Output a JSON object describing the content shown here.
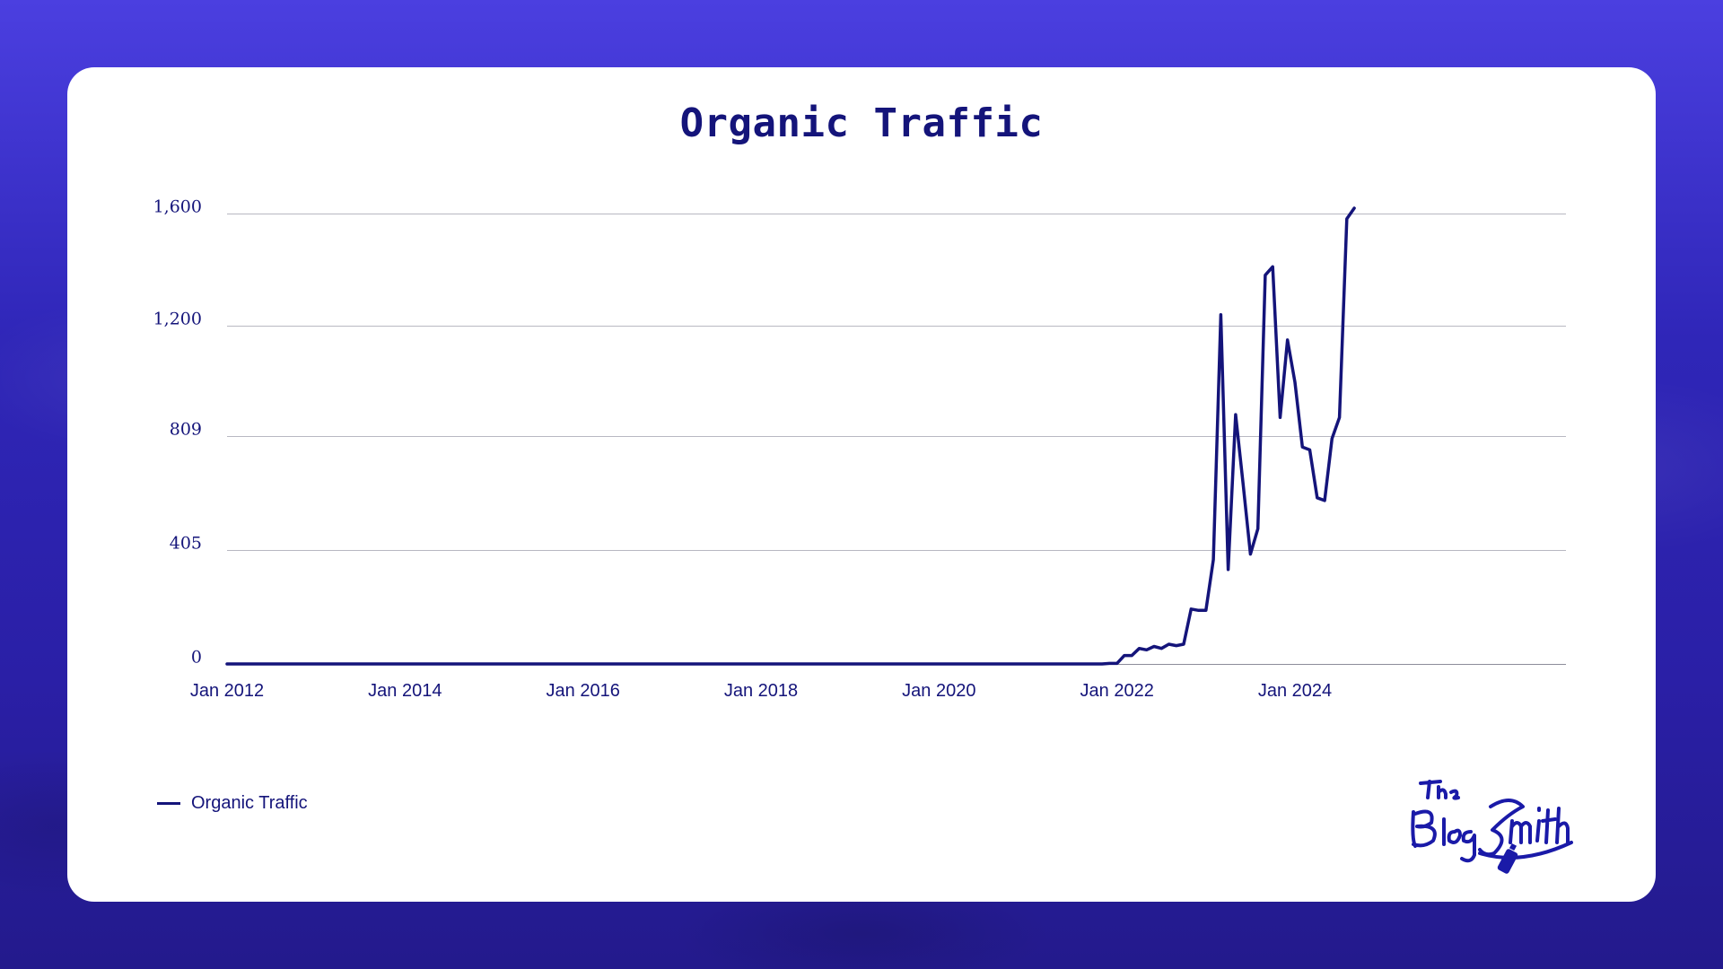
{
  "chart_data": {
    "type": "line",
    "title": "Organic Traffic",
    "xlabel": "",
    "ylabel": "",
    "x_ticks": [
      "Jan 2012",
      "Jan 2014",
      "Jan 2016",
      "Jan 2018",
      "Jan 2020",
      "Jan 2022",
      "Jan 2024"
    ],
    "y_ticks": [
      "0",
      "405",
      "809",
      "1,200",
      "1,600"
    ],
    "ylim": [
      0,
      1618
    ],
    "xlim": [
      "2012-01",
      "2024-07"
    ],
    "grid": true,
    "legend_position": "bottom-left",
    "series": [
      {
        "name": "Organic Traffic",
        "color": "#14147a",
        "points": [
          [
            "2012-01",
            0
          ],
          [
            "2021-11",
            0
          ],
          [
            "2021-12",
            2
          ],
          [
            "2022-01",
            2
          ],
          [
            "2022-02",
            30
          ],
          [
            "2022-03",
            30
          ],
          [
            "2022-04",
            55
          ],
          [
            "2022-05",
            50
          ],
          [
            "2022-06",
            62
          ],
          [
            "2022-07",
            55
          ],
          [
            "2022-08",
            70
          ],
          [
            "2022-09",
            65
          ],
          [
            "2022-10",
            70
          ],
          [
            "2022-11",
            195
          ],
          [
            "2022-12",
            190
          ],
          [
            "2023-01",
            190
          ],
          [
            "2023-02",
            370
          ],
          [
            "2023-03",
            1240
          ],
          [
            "2023-04",
            335
          ],
          [
            "2023-05",
            885
          ],
          [
            "2023-06",
            640
          ],
          [
            "2023-07",
            390
          ],
          [
            "2023-08",
            480
          ],
          [
            "2023-09",
            1380
          ],
          [
            "2023-10",
            1410
          ],
          [
            "2023-11",
            875
          ],
          [
            "2023-12",
            1150
          ],
          [
            "2024-01",
            1000
          ],
          [
            "2024-02",
            770
          ],
          [
            "2024-03",
            760
          ],
          [
            "2024-04",
            590
          ],
          [
            "2024-05",
            580
          ],
          [
            "2024-06",
            800
          ],
          [
            "2024-07",
            875
          ],
          [
            "2024-08",
            1580
          ],
          [
            "2024-09",
            1618
          ]
        ]
      }
    ]
  },
  "legend": {
    "label": "Organic Traffic"
  },
  "logo": {
    "text": "The BlogSmith",
    "name": "the-blogsmith-logo"
  }
}
